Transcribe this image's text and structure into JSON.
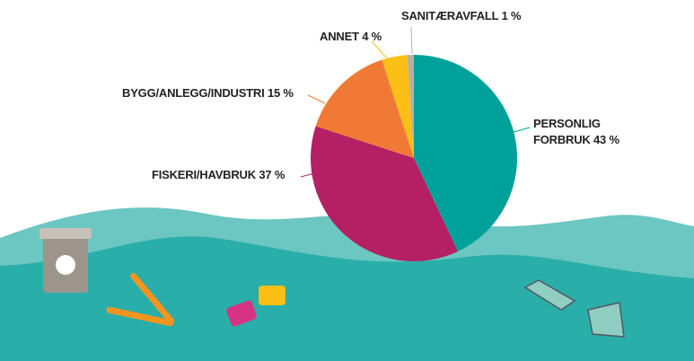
{
  "chart_data": {
    "type": "pie",
    "categories": [
      "PERSONLIG FORBRUK",
      "FISKERI/HAVBRUK",
      "BYGG/ANLEGG/INDUSTRI",
      "ANNET",
      "SANITÆRAVFALL"
    ],
    "values": [
      43,
      37,
      15,
      4,
      1
    ],
    "value_labels": [
      "43 %",
      "37 %",
      "15 %",
      "4 %",
      "1 %"
    ],
    "colors": [
      "#00a19a",
      "#b51f64",
      "#f07a35",
      "#fbbf16",
      "#b9aea6"
    ]
  }
}
